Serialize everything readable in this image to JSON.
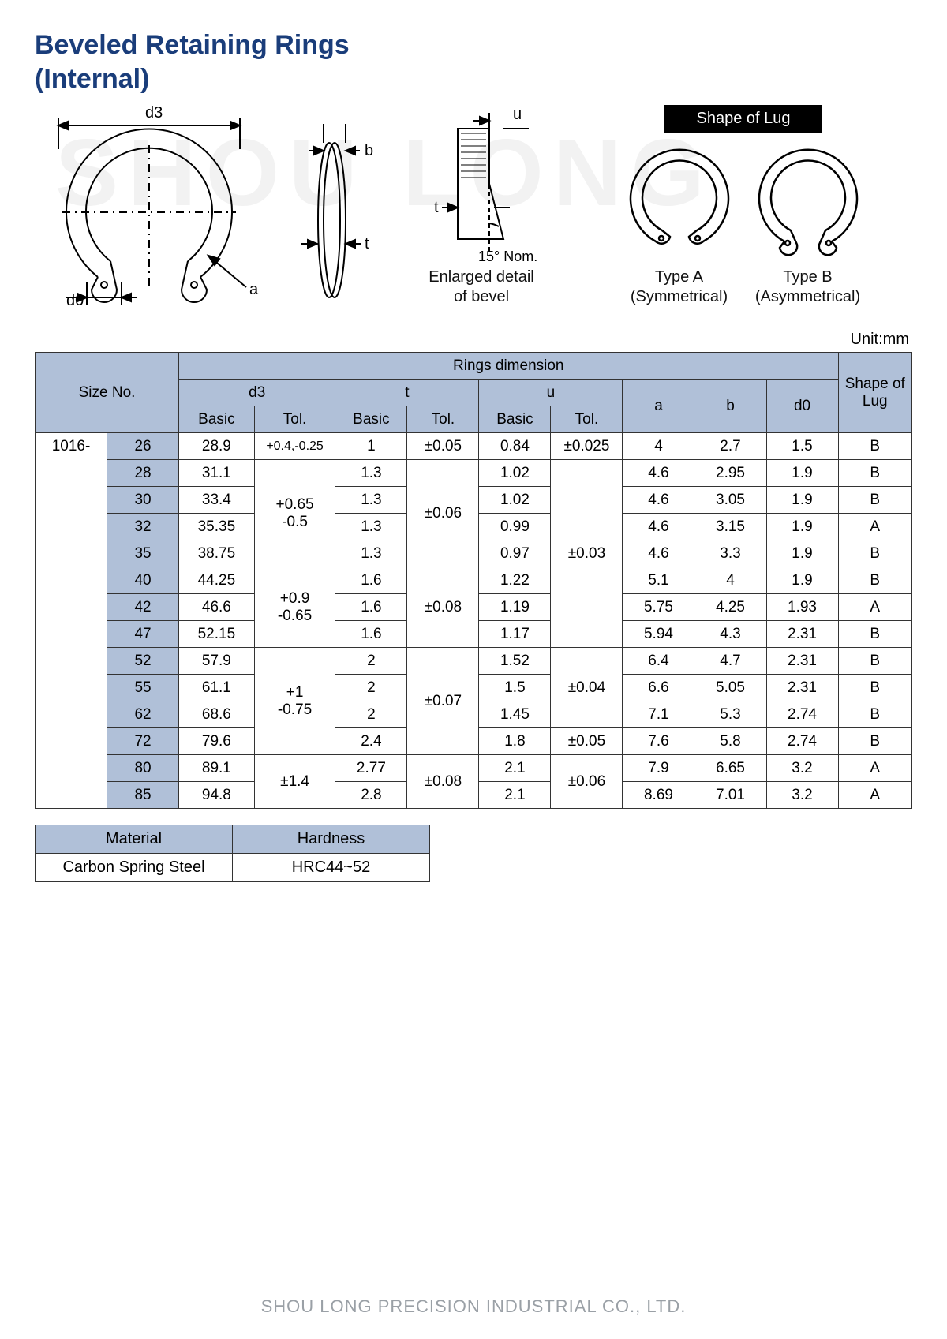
{
  "title_line1": "Beveled Retaining Rings",
  "title_line2": "(Internal)",
  "watermark": "SHOU LONG",
  "unit_label": "Unit:mm",
  "diagram": {
    "d3_label": "d3",
    "d0_label": "d0",
    "a_label": "a",
    "b_label": "b",
    "t_label": "t",
    "u_label": "u",
    "angle_label": "15° Nom.",
    "bevel_caption_l1": "Enlarged detail",
    "bevel_caption_l2": "of bevel",
    "lug_title": "Shape of Lug",
    "typeA_l1": "Type A",
    "typeA_l2": "(Symmetrical)",
    "typeB_l1": "Type B",
    "typeB_l2": "(Asymmetrical)"
  },
  "headers": {
    "size_no": "Size No.",
    "rings_dim": "Rings dimension",
    "shape_of_lug": "Shape of Lug",
    "d3": "d3",
    "t": "t",
    "u": "u",
    "a": "a",
    "b": "b",
    "d0": "d0",
    "basic": "Basic",
    "tol": "Tol."
  },
  "size_prefix": "1016-",
  "rows": [
    {
      "sz": "26",
      "d3b": "28.9",
      "d3t": "+0.4,-0.25",
      "tb": "1",
      "tt": "±0.05",
      "ub": "0.84",
      "ut": "±0.025",
      "a": "4",
      "b": "2.7",
      "d0": "1.5",
      "lug": "B"
    },
    {
      "sz": "28",
      "d3b": "31.1",
      "d3t": "",
      "tb": "1.3",
      "tt": "",
      "ub": "1.02",
      "ut": "",
      "a": "4.6",
      "b": "2.95",
      "d0": "1.9",
      "lug": "B"
    },
    {
      "sz": "30",
      "d3b": "33.4",
      "d3t": "",
      "tb": "1.3",
      "tt": "",
      "ub": "1.02",
      "ut": "",
      "a": "4.6",
      "b": "3.05",
      "d0": "1.9",
      "lug": "B"
    },
    {
      "sz": "32",
      "d3b": "35.35",
      "d3t": "",
      "tb": "1.3",
      "tt": "",
      "ub": "0.99",
      "ut": "",
      "a": "4.6",
      "b": "3.15",
      "d0": "1.9",
      "lug": "A"
    },
    {
      "sz": "35",
      "d3b": "38.75",
      "d3t": "",
      "tb": "1.3",
      "tt": "",
      "ub": "0.97",
      "ut": "",
      "a": "4.6",
      "b": "3.3",
      "d0": "1.9",
      "lug": "B"
    },
    {
      "sz": "40",
      "d3b": "44.25",
      "d3t": "",
      "tb": "1.6",
      "tt": "",
      "ub": "1.22",
      "ut": "",
      "a": "5.1",
      "b": "4",
      "d0": "1.9",
      "lug": "B"
    },
    {
      "sz": "42",
      "d3b": "46.6",
      "d3t": "",
      "tb": "1.6",
      "tt": "",
      "ub": "1.19",
      "ut": "",
      "a": "5.75",
      "b": "4.25",
      "d0": "1.93",
      "lug": "A"
    },
    {
      "sz": "47",
      "d3b": "52.15",
      "d3t": "",
      "tb": "1.6",
      "tt": "",
      "ub": "1.17",
      "ut": "",
      "a": "5.94",
      "b": "4.3",
      "d0": "2.31",
      "lug": "B"
    },
    {
      "sz": "52",
      "d3b": "57.9",
      "d3t": "",
      "tb": "2",
      "tt": "",
      "ub": "1.52",
      "ut": "",
      "a": "6.4",
      "b": "4.7",
      "d0": "2.31",
      "lug": "B"
    },
    {
      "sz": "55",
      "d3b": "61.1",
      "d3t": "",
      "tb": "2",
      "tt": "",
      "ub": "1.5",
      "ut": "",
      "a": "6.6",
      "b": "5.05",
      "d0": "2.31",
      "lug": "B"
    },
    {
      "sz": "62",
      "d3b": "68.6",
      "d3t": "",
      "tb": "2",
      "tt": "",
      "ub": "1.45",
      "ut": "",
      "a": "7.1",
      "b": "5.3",
      "d0": "2.74",
      "lug": "B"
    },
    {
      "sz": "72",
      "d3b": "79.6",
      "d3t": "",
      "tb": "2.4",
      "tt": "",
      "ub": "1.8",
      "ut": "",
      "a": "7.6",
      "b": "5.8",
      "d0": "2.74",
      "lug": "B"
    },
    {
      "sz": "80",
      "d3b": "89.1",
      "d3t": "",
      "tb": "2.77",
      "tt": "",
      "ub": "2.1",
      "ut": "",
      "a": "7.9",
      "b": "6.65",
      "d0": "3.2",
      "lug": "A"
    },
    {
      "sz": "85",
      "d3b": "94.8",
      "d3t": "",
      "tb": "2.8",
      "tt": "",
      "ub": "2.1",
      "ut": "",
      "a": "8.69",
      "b": "7.01",
      "d0": "3.2",
      "lug": "A"
    }
  ],
  "merged_tol": {
    "d3": [
      {
        "start": 1,
        "span": 4,
        "text_l1": "+0.65",
        "text_l2": "-0.5"
      },
      {
        "start": 5,
        "span": 3,
        "text_l1": "+0.9",
        "text_l2": "-0.65"
      },
      {
        "start": 8,
        "span": 4,
        "text_l1": "+1",
        "text_l2": "-0.75"
      },
      {
        "start": 12,
        "span": 2,
        "text_l1": "±1.4",
        "text_l2": ""
      }
    ],
    "t": [
      {
        "start": 1,
        "span": 4,
        "text": "±0.06"
      },
      {
        "start": 5,
        "span": 3,
        "text": "±0.08"
      },
      {
        "start": 8,
        "span": 4,
        "text": "±0.07"
      },
      {
        "start": 12,
        "span": 2,
        "text": "±0.08"
      }
    ],
    "u": [
      {
        "start": 1,
        "span": 7,
        "text": "±0.03"
      },
      {
        "start": 8,
        "span": 3,
        "text": "±0.04"
      },
      {
        "start": 11,
        "span": 1,
        "text": "±0.05"
      },
      {
        "start": 12,
        "span": 2,
        "text": "±0.06"
      }
    ]
  },
  "material_table": {
    "h1": "Material",
    "h2": "Hardness",
    "v1": "Carbon Spring Steel",
    "v2": "HRC44~52"
  },
  "footer": "SHOU LONG PRECISION INDUSTRIAL CO., LTD.",
  "colors": {
    "title": "#1a3d7a",
    "header_bg": "#b0c0d8",
    "border": "#333333",
    "footer": "#9aa0a6",
    "watermark": "#f2f2f2",
    "svg_stroke": "#000000",
    "lug_badge_bg": "#000000",
    "lug_badge_fg": "#ffffff"
  }
}
